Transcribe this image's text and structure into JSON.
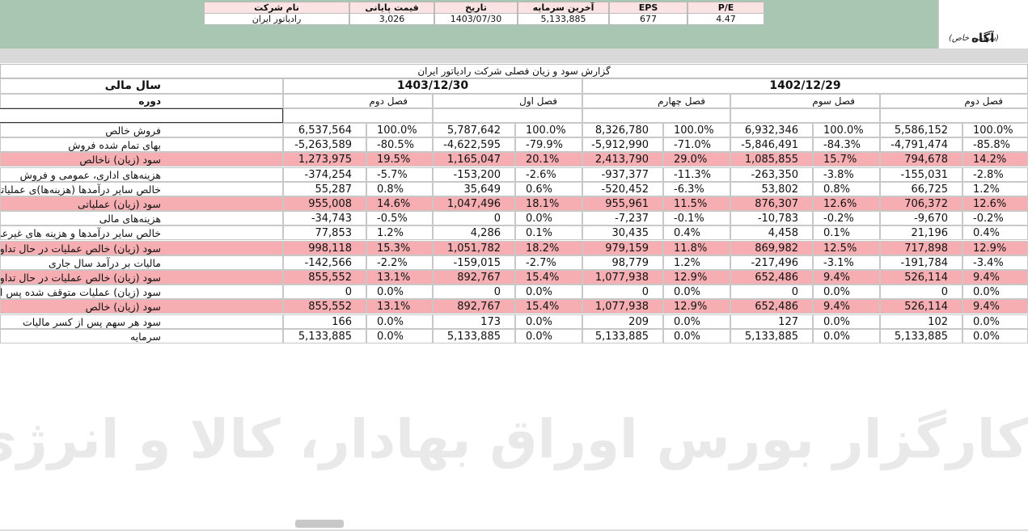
{
  "header": {
    "info_table": {
      "columns": [
        "نام شرکت",
        "قیمت پایانی",
        "تاریخ",
        "آخرین سرمایه",
        "EPS",
        "P/E"
      ],
      "values": [
        "رادیاتور ایران",
        "3,026",
        "1403/07/30",
        "5,133,885",
        "677",
        "4.47"
      ]
    },
    "logo": {
      "name": "آگاه",
      "subtitle": "(سهامی خاص)"
    }
  },
  "report": {
    "title": "گزارش سود و زیان فصلی شرکت رادیاتور ایران",
    "fiscal_year_label": "سال مالی",
    "period_label": "دوره",
    "years": [
      "1403/12/30",
      "1402/12/29"
    ],
    "periods": [
      "فصل دوم",
      "فصل اول",
      "فصل چهارم",
      "فصل سوم",
      "فصل دوم"
    ],
    "rows": [
      {
        "label": "فروش خالص",
        "cells": [
          [
            "6,537,564",
            "100.0%"
          ],
          [
            "5,787,642",
            "100.0%"
          ],
          [
            "8,326,780",
            "100.0%"
          ],
          [
            "6,932,346",
            "100.0%"
          ],
          [
            "5,586,152",
            "100.0%"
          ]
        ]
      },
      {
        "label": "بهای تمام شده فروش",
        "cells": [
          [
            "-5,263,589",
            "-80.5%"
          ],
          [
            "-4,622,595",
            "-79.9%"
          ],
          [
            "-5,912,990",
            "-71.0%"
          ],
          [
            "-5,846,491",
            "-84.3%"
          ],
          [
            "-4,791,474",
            "-85.8%"
          ]
        ]
      },
      {
        "label": "سود (زیان) ناخالص",
        "cells": [
          [
            "1,273,975",
            "19.5%"
          ],
          [
            "1,165,047",
            "20.1%"
          ],
          [
            "2,413,790",
            "29.0%"
          ],
          [
            "1,085,855",
            "15.7%"
          ],
          [
            "794,678",
            "14.2%"
          ]
        ]
      },
      {
        "label": "هزینه‌های اداری، عمومی و فروش",
        "cells": [
          [
            "-374,254",
            "-5.7%"
          ],
          [
            "-153,200",
            "-2.6%"
          ],
          [
            "-937,377",
            "-11.3%"
          ],
          [
            "-263,350",
            "-3.8%"
          ],
          [
            "-155,031",
            "-2.8%"
          ]
        ]
      },
      {
        "label": "خالص سایر درآمدها (هزینه‌ها)ی عملیاتی",
        "cells": [
          [
            "55,287",
            "0.8%"
          ],
          [
            "35,649",
            "0.6%"
          ],
          [
            "-520,452",
            "-6.3%"
          ],
          [
            "53,802",
            "0.8%"
          ],
          [
            "66,725",
            "1.2%"
          ]
        ]
      },
      {
        "label": "سود (زیان) عملیاتی",
        "cells": [
          [
            "955,008",
            "14.6%"
          ],
          [
            "1,047,496",
            "18.1%"
          ],
          [
            "955,961",
            "11.5%"
          ],
          [
            "876,307",
            "12.6%"
          ],
          [
            "706,372",
            "12.6%"
          ]
        ]
      },
      {
        "label": "هزینه‌های مالی",
        "cells": [
          [
            "-34,743",
            "-0.5%"
          ],
          [
            "0",
            "0.0%"
          ],
          [
            "-7,237",
            "-0.1%"
          ],
          [
            "-10,783",
            "-0.2%"
          ],
          [
            "-9,670",
            "-0.2%"
          ]
        ]
      },
      {
        "label": "خالص سایر درآمدها و هزینه های غیرعملیاتی",
        "cells": [
          [
            "77,853",
            "1.2%"
          ],
          [
            "4,286",
            "0.1%"
          ],
          [
            "30,435",
            "0.4%"
          ],
          [
            "4,458",
            "0.1%"
          ],
          [
            "21,196",
            "0.4%"
          ]
        ]
      },
      {
        "label": "سود (زیان) خالص عملیات در حال تداوم قبل از مالیات",
        "cells": [
          [
            "998,118",
            "15.3%"
          ],
          [
            "1,051,782",
            "18.2%"
          ],
          [
            "979,159",
            "11.8%"
          ],
          [
            "869,982",
            "12.5%"
          ],
          [
            "717,898",
            "12.9%"
          ]
        ]
      },
      {
        "label": "مالیات بر درآمد سال جاری",
        "cells": [
          [
            "-142,566",
            "-2.2%"
          ],
          [
            "-159,015",
            "-2.7%"
          ],
          [
            "98,779",
            "1.2%"
          ],
          [
            "-217,496",
            "-3.1%"
          ],
          [
            "-191,784",
            "-3.4%"
          ]
        ]
      },
      {
        "label": "سود (زیان) خالص عملیات در حال تداوم",
        "cells": [
          [
            "855,552",
            "13.1%"
          ],
          [
            "892,767",
            "15.4%"
          ],
          [
            "1,077,938",
            "12.9%"
          ],
          [
            "652,486",
            "9.4%"
          ],
          [
            "526,114",
            "9.4%"
          ]
        ]
      },
      {
        "label": "سود (زیان) عملیات متوقف شده پس از اثر مالیاتی",
        "cells": [
          [
            "0",
            "0.0%"
          ],
          [
            "0",
            "0.0%"
          ],
          [
            "0",
            "0.0%"
          ],
          [
            "0",
            "0.0%"
          ],
          [
            "0",
            "0.0%"
          ]
        ]
      },
      {
        "label": "سود (زیان) خالص",
        "cells": [
          [
            "855,552",
            "13.1%"
          ],
          [
            "892,767",
            "15.4%"
          ],
          [
            "1,077,938",
            "12.9%"
          ],
          [
            "652,486",
            "9.4%"
          ],
          [
            "526,114",
            "9.4%"
          ]
        ]
      },
      {
        "label": "سود هر سهم پس از کسر مالیات",
        "cells": [
          [
            "166",
            "0.0%"
          ],
          [
            "173",
            "0.0%"
          ],
          [
            "209",
            "0.0%"
          ],
          [
            "127",
            "0.0%"
          ],
          [
            "102",
            "0.0%"
          ]
        ]
      },
      {
        "label": "سرمایه",
        "cells": [
          [
            "5,133,885",
            "0.0%"
          ],
          [
            "5,133,885",
            "0.0%"
          ],
          [
            "5,133,885",
            "0.0%"
          ],
          [
            "5,133,885",
            "0.0%"
          ],
          [
            "5,133,885",
            "0.0%"
          ]
        ]
      }
    ]
  },
  "watermark": "کارگزار بورس اوراق بهادار، کالا و انرژی"
}
